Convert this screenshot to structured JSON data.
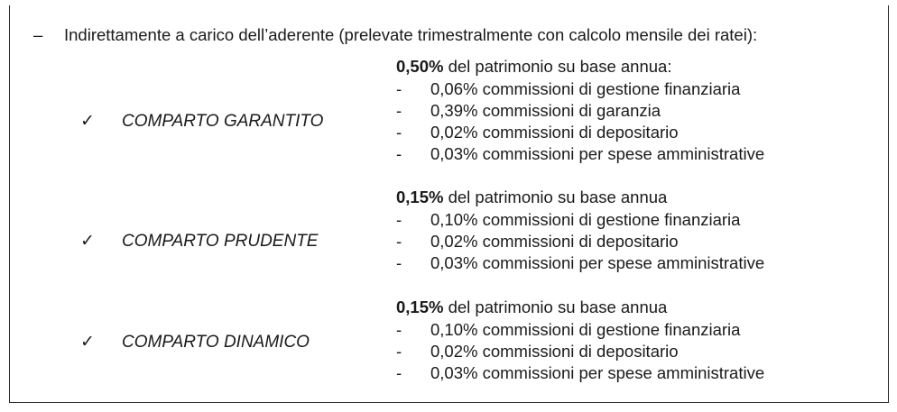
{
  "intro": {
    "dash": "–",
    "text": "Indirettamente a carico dell’aderente (prelevate trimestralmente con calcolo mensile dei ratei):"
  },
  "sections": [
    {
      "check": "✓",
      "name": "COMPARTO GARANTITO",
      "pct": "0,50%",
      "basis": " del patrimonio su base annua:",
      "items": [
        "0,06% commissioni di gestione finanziaria",
        "0,39% commissioni di garanzia",
        "0,02% commissioni di depositario",
        "0,03% commissioni per spese amministrative"
      ]
    },
    {
      "check": "✓",
      "name": "COMPARTO PRUDENTE",
      "pct": "0,15%",
      "basis": " del patrimonio su base annua",
      "items": [
        "0,10% commissioni di gestione finanziaria",
        "0,02% commissioni di depositario",
        "0,03% commissioni per spese amministrative"
      ]
    },
    {
      "check": "✓",
      "name": "COMPARTO DINAMICO",
      "pct": "0,15%",
      "basis": " del patrimonio su base annua",
      "items": [
        "0,10% commissioni di gestione finanziaria",
        "0,02% commissioni di depositario",
        "0,03% commissioni per spese amministrative"
      ]
    }
  ],
  "bullet": "-"
}
